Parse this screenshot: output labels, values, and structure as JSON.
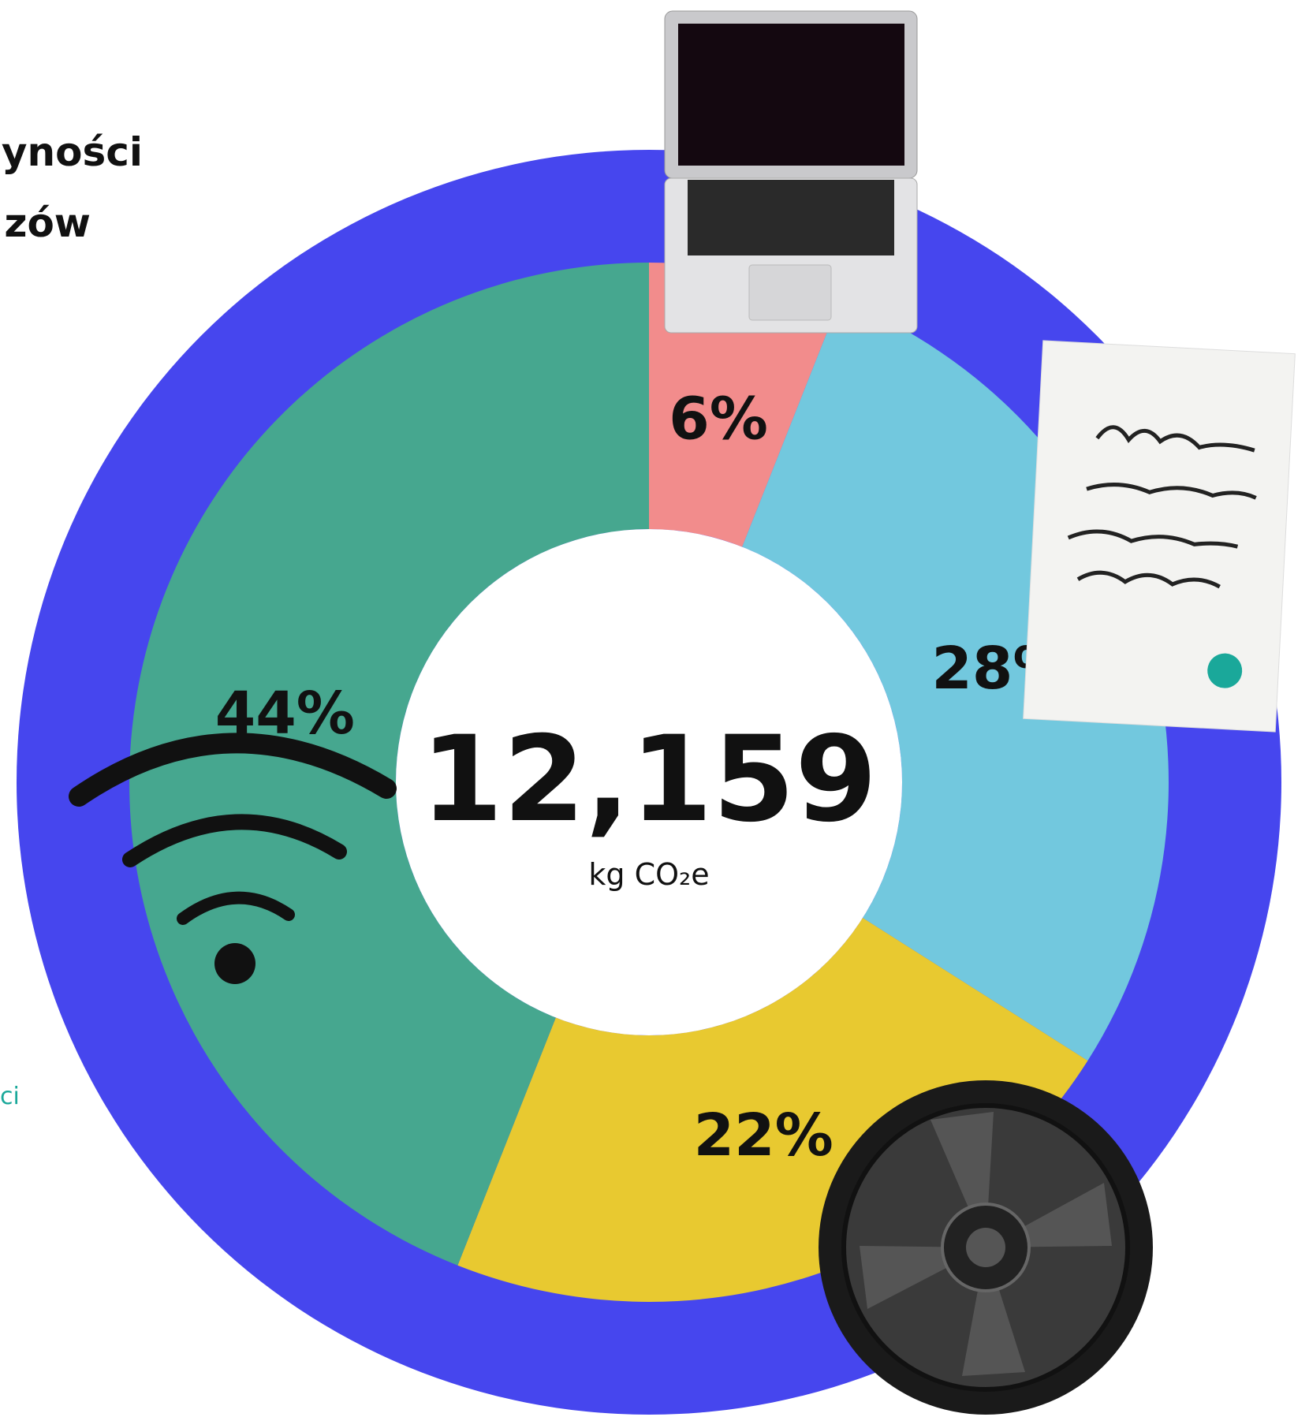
{
  "chart_data": {
    "type": "donut",
    "title_lines": [
      "yności",
      "zów"
    ],
    "side_text": "ci",
    "values": [
      6,
      28,
      22,
      44
    ],
    "value_labels": [
      "6%",
      "28%",
      "22%",
      "44%"
    ],
    "colors": [
      "#f28c8c",
      "#72c8de",
      "#e8c930",
      "#46a78f"
    ],
    "ring_color": "#4646ee",
    "total": {
      "value": 12159,
      "label": "12,159"
    },
    "unit": "kg CO₂e"
  }
}
